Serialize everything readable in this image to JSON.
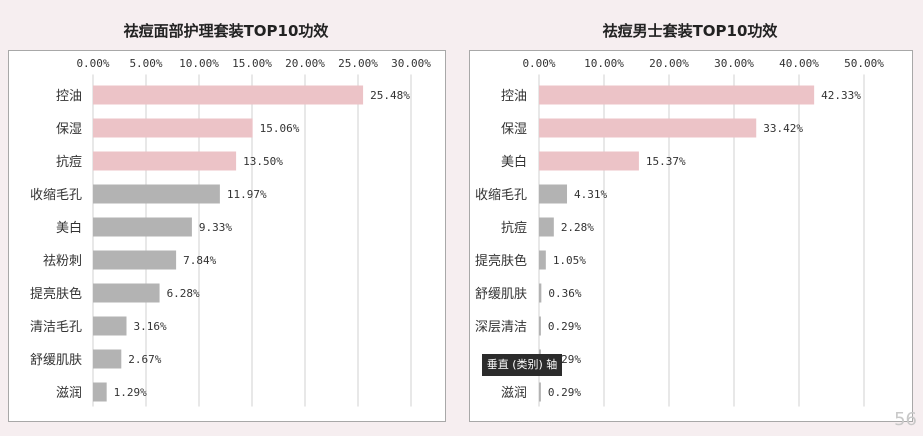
{
  "tooltip": "垂直 (类别) 轴",
  "page_number": "56",
  "colors": {
    "pink": "#ecc3c7",
    "gray": "#b3b3b3",
    "axis": "#d0d0d0",
    "text": "#333333"
  },
  "chart_data": [
    {
      "type": "bar",
      "orientation": "horizontal",
      "title": "祛痘面部护理套装TOP10功效",
      "xlim": [
        0,
        30
      ],
      "ticks": [
        0,
        5,
        10,
        15,
        20,
        25,
        30
      ],
      "tick_labels": [
        "0.00%",
        "5.00%",
        "10.00%",
        "15.00%",
        "20.00%",
        "25.00%",
        "30.00%"
      ],
      "categories": [
        "控油",
        "保湿",
        "抗痘",
        "收缩毛孔",
        "美白",
        "祛粉刺",
        "提亮肤色",
        "清洁毛孔",
        "舒缓肌肤",
        "滋润"
      ],
      "values": [
        25.48,
        15.06,
        13.5,
        11.97,
        9.33,
        7.84,
        6.28,
        3.16,
        2.67,
        1.29
      ],
      "value_labels": [
        "25.48%",
        "15.06%",
        "13.50%",
        "11.97%",
        "9.33%",
        "7.84%",
        "6.28%",
        "3.16%",
        "2.67%",
        "1.29%"
      ],
      "bar_colors": [
        "pink",
        "pink",
        "pink",
        "gray",
        "gray",
        "gray",
        "gray",
        "gray",
        "gray",
        "gray"
      ]
    },
    {
      "type": "bar",
      "orientation": "horizontal",
      "title": "祛痘男士套装TOP10功效",
      "xlim": [
        0,
        50
      ],
      "ticks": [
        0,
        10,
        20,
        30,
        40,
        50
      ],
      "tick_labels": [
        "0.00%",
        "10.00%",
        "20.00%",
        "30.00%",
        "40.00%",
        "50.00%"
      ],
      "categories": [
        "控油",
        "保湿",
        "美白",
        "收缩毛孔",
        "抗痘",
        "提亮肤色",
        "舒缓肌肤",
        "深层清洁",
        "",
        "滋润"
      ],
      "values": [
        42.33,
        33.42,
        15.37,
        4.31,
        2.28,
        1.05,
        0.36,
        0.29,
        0.29,
        0.29
      ],
      "value_labels": [
        "42.33%",
        "33.42%",
        "15.37%",
        "4.31%",
        "2.28%",
        "1.05%",
        "0.36%",
        "0.29%",
        "0.29%",
        "0.29%"
      ],
      "bar_colors": [
        "pink",
        "pink",
        "pink",
        "gray",
        "gray",
        "gray",
        "gray",
        "gray",
        "gray",
        "gray"
      ]
    }
  ]
}
